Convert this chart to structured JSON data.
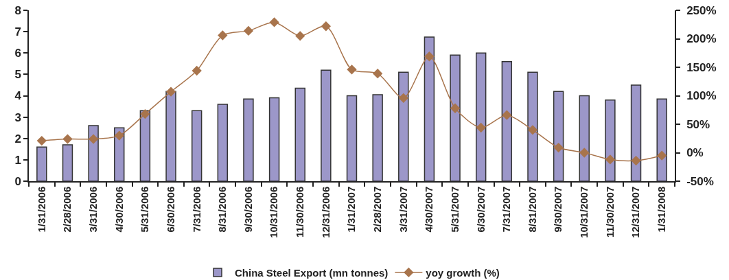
{
  "chart_data": {
    "type": "bar",
    "categories": [
      "1/31/2006",
      "2/28/2006",
      "3/31/2006",
      "4/30/2006",
      "5/31/2006",
      "6/30/2006",
      "7/31/2006",
      "8/31/2006",
      "9/30/2006",
      "10/31/2006",
      "11/30/2006",
      "12/31/2006",
      "1/31/2007",
      "2/28/2007",
      "3/31/2007",
      "4/30/2007",
      "5/31/2007",
      "6/30/2007",
      "7/31/2007",
      "8/31/2007",
      "9/30/2007",
      "10/31/2007",
      "11/30/2007",
      "12/31/2007",
      "1/31/2008"
    ],
    "series": [
      {
        "name": "China Steel Export (mn tonnes)",
        "color": "#9c97c9",
        "values": [
          1.6,
          1.7,
          2.6,
          2.5,
          3.3,
          4.2,
          3.3,
          3.6,
          3.85,
          3.9,
          4.35,
          5.2,
          4.0,
          4.05,
          5.1,
          6.75,
          5.9,
          6.0,
          5.6,
          5.1,
          4.2,
          4.0,
          3.8,
          4.5,
          3.85
        ]
      },
      {
        "name": "yoy growth (%)",
        "type": "line",
        "axis": "y2",
        "color": "#a8744c",
        "values": [
          21,
          24,
          24,
          30,
          68,
          107,
          144,
          206,
          214,
          229,
          205,
          222,
          146,
          139,
          96,
          169,
          78,
          44,
          66,
          40,
          9,
          0,
          -12,
          -14,
          -5
        ]
      }
    ],
    "ylim": [
      0,
      8
    ],
    "yticks": [
      0,
      1,
      2,
      3,
      4,
      5,
      6,
      7,
      8
    ],
    "y2lim": [
      -50,
      250
    ],
    "y2ticks": [
      {
        "value": -50,
        "label": "-50%"
      },
      {
        "value": 0,
        "label": "0%"
      },
      {
        "value": 50,
        "label": "50%"
      },
      {
        "value": 100,
        "label": "100%"
      },
      {
        "value": 150,
        "label": "150%"
      },
      {
        "value": 200,
        "label": "200%"
      },
      {
        "value": 250,
        "label": "250%"
      }
    ],
    "legend": "bottom",
    "marker": "diamond",
    "line_style": "solid"
  }
}
